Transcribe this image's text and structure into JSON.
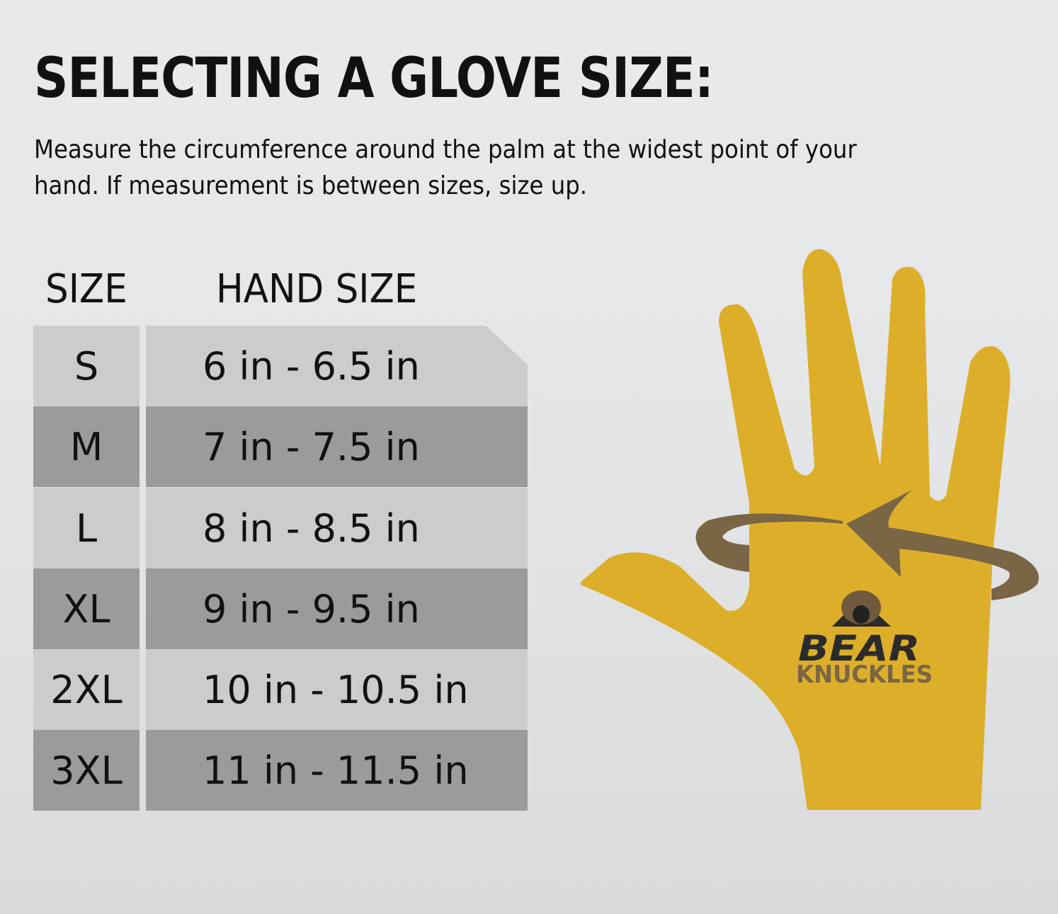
{
  "title": "SELECTING A GLOVE SIZE:",
  "description": "Measure the circumference around the palm at the widest point of your hand. If measurement is between sizes, size up.",
  "table": {
    "headers": [
      "SIZE",
      "HAND SIZE"
    ],
    "rows": [
      {
        "size": "S",
        "hand_size": "6 in - 6.5 in"
      },
      {
        "size": "M",
        "hand_size": "7 in - 7.5 in"
      },
      {
        "size": "L",
        "hand_size": "8 in - 8.5 in"
      },
      {
        "size": "XL",
        "hand_size": "9 in - 9.5 in"
      },
      {
        "size": "2XL",
        "hand_size": "10 in - 10.5 in"
      },
      {
        "size": "3XL",
        "hand_size": "11 in - 11.5 in"
      }
    ]
  },
  "logo": {
    "line1": "BEAR",
    "line2": "KNUCKLES"
  },
  "colors": {
    "hand": "#dcae2a",
    "arrow": "#7a6544",
    "row_light": "#cbcccb",
    "row_dark": "#9b9b9b"
  }
}
